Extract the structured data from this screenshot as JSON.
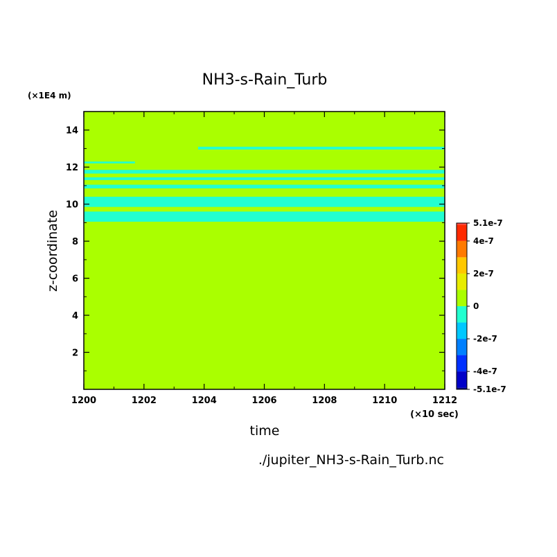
{
  "chart_data": {
    "type": "heatmap",
    "title": "NH3-s-Rain_Turb",
    "xlabel": "time",
    "ylabel": "z-coordinate",
    "x_unit": "(×10 sec)",
    "y_unit": "(×1E4 m)",
    "source": "./jupiter_NH3-s-Rain_Turb.nc",
    "xlim": [
      1200,
      1212
    ],
    "ylim": [
      0,
      15
    ],
    "x_ticks": [
      1200,
      1202,
      1204,
      1206,
      1208,
      1210,
      1212
    ],
    "y_ticks": [
      2,
      4,
      6,
      8,
      10,
      12,
      14
    ],
    "background_level": {
      "range": [
        0,
        1e-07
      ],
      "color": "#aaff00"
    },
    "negative_bands": [
      {
        "t_start": 1200,
        "t_end": 1212,
        "z_bottom": 9.05,
        "z_top": 9.6,
        "color": "#22ffd0"
      },
      {
        "t_start": 1200,
        "t_end": 1212,
        "z_bottom": 9.85,
        "z_top": 10.4,
        "color": "#22ffd0"
      },
      {
        "t_start": 1200,
        "t_end": 1212,
        "z_bottom": 10.85,
        "z_top": 11.05,
        "color": "#22ffd0"
      },
      {
        "t_start": 1200,
        "t_end": 1212,
        "z_bottom": 11.3,
        "z_top": 11.45,
        "color": "#22ffd0"
      },
      {
        "t_start": 1200,
        "t_end": 1212,
        "z_bottom": 11.65,
        "z_top": 11.85,
        "color": "#22ffd0"
      },
      {
        "t_start": 1200,
        "t_end": 1201.7,
        "z_bottom": 12.2,
        "z_top": 12.3,
        "color": "#22ffd0"
      },
      {
        "t_start": 1203.8,
        "t_end": 1212,
        "z_bottom": 12.95,
        "z_top": 13.1,
        "color": "#22ffd0"
      }
    ],
    "colorbar": {
      "labels": [
        "5.1e-7",
        "4e-7",
        "2e-7",
        "0",
        "-2e-7",
        "-4e-7",
        "-5.1e-7"
      ],
      "label_values": [
        5.1e-07,
        4e-07,
        2e-07,
        0,
        -2e-07,
        -4e-07,
        -5.1e-07
      ],
      "levels": [
        {
          "from": 5e-07,
          "to": 5.1e-07,
          "color": "#ff4a4a"
        },
        {
          "from": 4e-07,
          "to": 5e-07,
          "color": "#ff2a00"
        },
        {
          "from": 3e-07,
          "to": 4e-07,
          "color": "#ff7a00"
        },
        {
          "from": 2e-07,
          "to": 3e-07,
          "color": "#ffc800"
        },
        {
          "from": 1e-07,
          "to": 2e-07,
          "color": "#e8ec00"
        },
        {
          "from": 0,
          "to": 1e-07,
          "color": "#aaff00"
        },
        {
          "from": -1e-07,
          "to": 0,
          "color": "#22ffd0"
        },
        {
          "from": -2e-07,
          "to": -1e-07,
          "color": "#00c8ff"
        },
        {
          "from": -3e-07,
          "to": -2e-07,
          "color": "#0080ff"
        },
        {
          "from": -4e-07,
          "to": -3e-07,
          "color": "#0030ff"
        },
        {
          "from": -5e-07,
          "to": -4e-07,
          "color": "#0000c8"
        },
        {
          "from": -5.1e-07,
          "to": -5e-07,
          "color": "#00007a"
        }
      ]
    }
  }
}
